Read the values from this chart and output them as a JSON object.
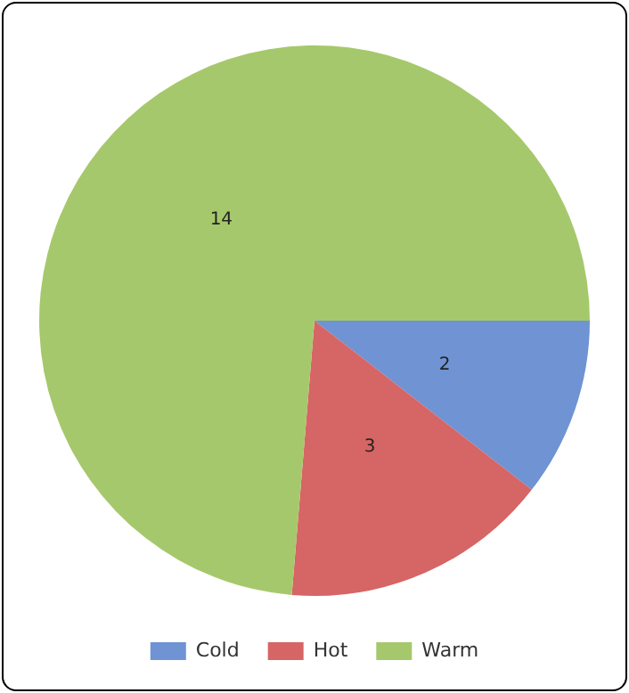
{
  "chart_data": {
    "type": "pie",
    "categories": [
      "Cold",
      "Hot",
      "Warm"
    ],
    "values": [
      2,
      3,
      14
    ],
    "colors": [
      "#6f93d3",
      "#d66565",
      "#a6c86c"
    ],
    "data_labels": true,
    "legend": "bottom"
  }
}
